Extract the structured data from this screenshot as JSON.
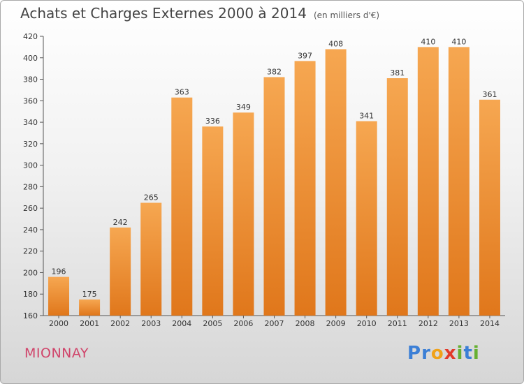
{
  "header": {
    "title": "Achats et Charges Externes 2000 à 2014",
    "subtitle": "(en milliers d'€)"
  },
  "footer": {
    "commune": "MIONNAY",
    "logo_letters": [
      "P",
      "r",
      "o",
      "x",
      "i",
      "t",
      "i"
    ]
  },
  "colors": {
    "bar_light": "#f6a751",
    "bar_dark": "#e0771b",
    "commune": "#d0446a",
    "logo": [
      "#3b7fd6",
      "#3b7fd6",
      "#f0a21a",
      "#e23a2a",
      "#66b032",
      "#3b7fd6",
      "#66b032"
    ]
  },
  "chart_data": {
    "type": "bar",
    "title": "Achats et Charges Externes 2000 à 2014",
    "subtitle": "(en milliers d'€)",
    "categories": [
      "2000",
      "2001",
      "2002",
      "2003",
      "2004",
      "2005",
      "2006",
      "2007",
      "2008",
      "2009",
      "2010",
      "2011",
      "2012",
      "2013",
      "2014"
    ],
    "values": [
      196,
      175,
      242,
      265,
      363,
      336,
      349,
      382,
      397,
      408,
      341,
      381,
      410,
      410,
      361
    ],
    "ylim": [
      160,
      420
    ],
    "yticks": [
      160,
      180,
      200,
      220,
      240,
      260,
      280,
      300,
      320,
      340,
      360,
      380,
      400,
      420
    ],
    "grid": false,
    "data_labels": true
  }
}
